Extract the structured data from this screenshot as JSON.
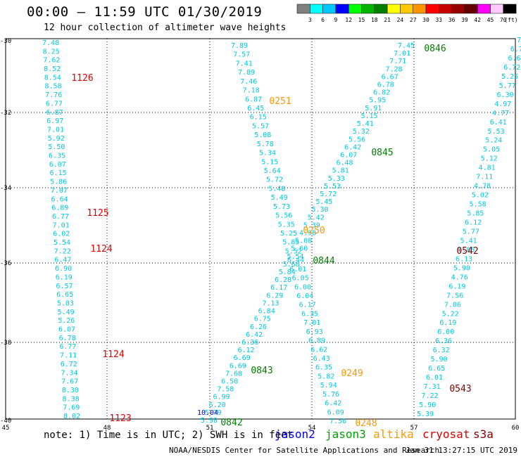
{
  "header": {
    "title": "00:00 – 11:59 UTC 01/30/2019",
    "subtitle": "12 hour collection of altimeter wave heights"
  },
  "colorbar": {
    "unit": "(ft)",
    "labels": [
      "3",
      "6",
      "9",
      "12",
      "15",
      "18",
      "21",
      "24",
      "27",
      "30",
      "33",
      "36",
      "39",
      "42",
      "45",
      "70"
    ],
    "colors": [
      "#808080",
      "#00ffff",
      "#00c8ff",
      "#0000ff",
      "#00ff00",
      "#00b400",
      "#008000",
      "#ffff00",
      "#ffc800",
      "#ff9600",
      "#ff0000",
      "#c80000",
      "#960000",
      "#640000",
      "#ff00ff",
      "#ffc8ff",
      "#000000"
    ]
  },
  "axes": {
    "lat_labels": [
      "-30",
      "-32",
      "-34",
      "-36",
      "-38",
      "-40"
    ],
    "lon_labels": [
      "45",
      "48",
      "51",
      "54",
      "57",
      "60"
    ]
  },
  "tracks": [
    {
      "name": "track-a",
      "color": "#00c8e0",
      "values": [
        "7.48",
        "8.25",
        "7.62",
        "8.52",
        "8.54",
        "8.58",
        "7.76",
        "6.77",
        "6.87",
        "6.97",
        "7.01",
        "5.92",
        "5.50",
        "6.35",
        "6.07",
        "6.15",
        "5.86",
        "7.07",
        "6.64",
        "6.89",
        "6.77",
        "7.01",
        "6.02",
        "5.54",
        "7.22",
        "6.47",
        "6.90",
        "6.19",
        "6.57",
        "6.65",
        "5.03",
        "5.49",
        "5.26",
        "6.07",
        "6.78",
        "6.77",
        "7.11",
        "6.72",
        "7.34",
        "7.67",
        "8.30",
        "8.38",
        "7.69",
        "8.02"
      ]
    },
    {
      "name": "track-b",
      "color": "#00c8e0",
      "values": [
        "7.89",
        "7.57",
        "7.41",
        "7.89",
        "7.46",
        "7.18",
        "6.87",
        "6.45",
        "6.15",
        "5.57",
        "5.08",
        "5.78",
        "5.34",
        "5.15",
        "5.64",
        "5.72",
        "5.48",
        "5.49",
        "5.73",
        "5.56",
        "5.35",
        "5.25",
        "5.85",
        "5.52",
        "6.44",
        "6.01",
        "6.05",
        "6.00",
        "6.04",
        "6.17",
        "6.35",
        "7.01",
        "6.93",
        "6.89",
        "6.62",
        "6.43",
        "6.35",
        "5.82",
        "5.94",
        "5.76",
        "6.42",
        "6.09",
        "7.56"
      ]
    },
    {
      "name": "track-c",
      "color": "#00c8e0",
      "values": [
        "7.45",
        "7.01",
        "7.71",
        "7.28",
        "6.67",
        "6.78",
        "6.82",
        "5.95",
        "5.91",
        "5.15",
        "5.41",
        "5.32",
        "5.56",
        "6.42",
        "6.07",
        "6.48",
        "5.81",
        "5.33",
        "5.53",
        "5.72",
        "5.45",
        "5.30",
        "5.42",
        "5.39",
        "4.98",
        "5.08",
        "5.60",
        "5.54",
        "5.68",
        "5.84",
        "6.28",
        "6.17",
        "6.29",
        "7.13",
        "6.84",
        "6.75",
        "6.26",
        "6.42",
        "6.36",
        "6.12",
        "6.69",
        "6.69",
        "7.68",
        "6.50",
        "7.58",
        "6.99",
        "6.20",
        "5.79",
        "5.98"
      ]
    },
    {
      "name": "track-d",
      "color": "#00c8e0",
      "values": [
        "7",
        "6.7",
        "6.6",
        "6.72",
        "5.25",
        "5.77",
        "6.30",
        "4.97",
        "4.77",
        "6.41",
        "5.53",
        "5.24",
        "5.05",
        "5.12",
        "4.81",
        "7.11",
        "4.78",
        "5.02",
        "5.58",
        "5.85",
        "6.12",
        "5.77",
        "5.41",
        "5.85",
        "6.13",
        "5.90",
        "4.76",
        "6.19",
        "7.56",
        "7.06",
        "5.22",
        "6.19",
        "6.00",
        "6.36",
        "6.32",
        "5.90",
        "6.65",
        "6.01",
        "7.31",
        "7.22",
        "5.90",
        "5.39"
      ]
    }
  ],
  "extra_value": {
    "text": "10.04",
    "color": "#0000cc"
  },
  "time_labels": [
    {
      "text": "0846",
      "color": "#008000"
    },
    {
      "text": "1126",
      "color": "#e00000"
    },
    {
      "text": "0251",
      "color": "#ff9600"
    },
    {
      "text": "0845",
      "color": "#008000"
    },
    {
      "text": "1125",
      "color": "#e00000"
    },
    {
      "text": "0250",
      "color": "#ff9600"
    },
    {
      "text": "1124",
      "color": "#e00000"
    },
    {
      "text": "0844",
      "color": "#008000"
    },
    {
      "text": "0542",
      "color": "#800000"
    },
    {
      "text": "1124",
      "color": "#e00000"
    },
    {
      "text": "0843",
      "color": "#008000"
    },
    {
      "text": "0249",
      "color": "#ff9600"
    },
    {
      "text": "0543",
      "color": "#800000"
    },
    {
      "text": "1123",
      "color": "#e00000"
    },
    {
      "text": "0842",
      "color": "#008000"
    },
    {
      "text": "0248",
      "color": "#ff9600"
    }
  ],
  "footer": {
    "note": "note: 1) Time is in UTC; 2) SWH is in feet",
    "satellites": [
      {
        "name": "jason2",
        "color": "#0000ff"
      },
      {
        "name": "jason3",
        "color": "#00a000"
      },
      {
        "name": "altika",
        "color": "#ff9600"
      },
      {
        "name": "cryosat",
        "color": "#e00000"
      },
      {
        "name": "s3a",
        "color": "#800000"
      }
    ],
    "credit": "NOAA/NESDIS Center for Satellite Applications and Research",
    "timestamp": "Jan 31 13:27:15 UTC 2019"
  }
}
